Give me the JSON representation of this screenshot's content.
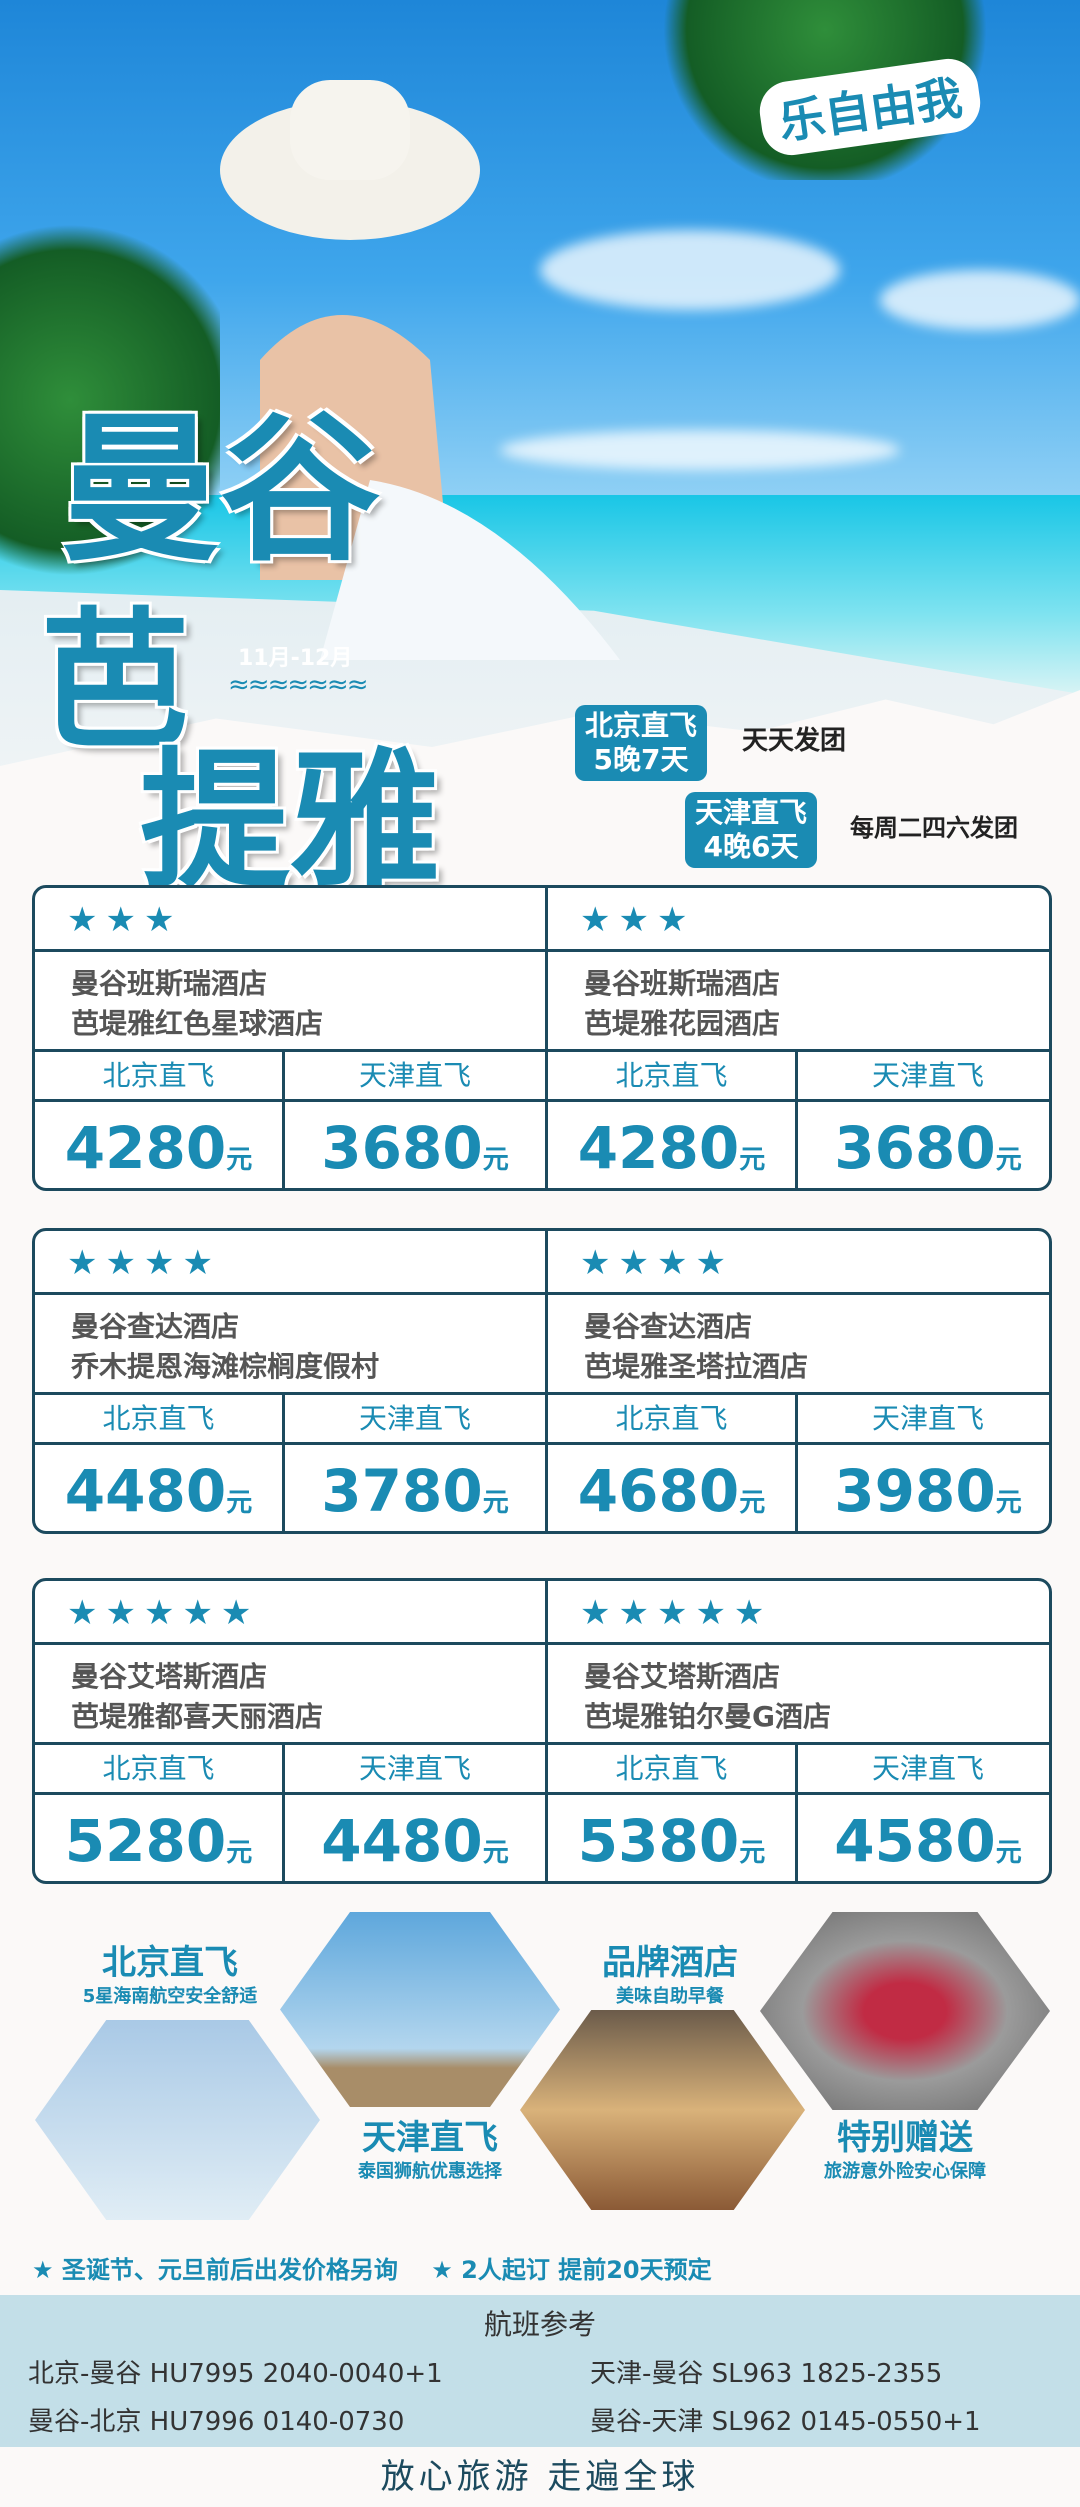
{
  "hero": {
    "slogan": "乐自由我",
    "title_line1": "曼谷",
    "title_line2": "芭",
    "title_line3": "提雅",
    "date_range": "11月-12月",
    "badges": [
      {
        "line1": "北京直飞",
        "line2": "5晚7天",
        "note": "天天发团"
      },
      {
        "line1": "天津直飞",
        "line2": "4晚6天",
        "note": "每周二四六发团"
      }
    ]
  },
  "price_tables": [
    {
      "packages": [
        {
          "stars": "★★★",
          "hotels": [
            "曼谷班斯瑞酒店",
            "芭堤雅红色星球酒店"
          ],
          "beijing_label": "北京直飞",
          "tianjin_label": "天津直飞",
          "beijing_price": "4280",
          "tianjin_price": "3680"
        },
        {
          "stars": "★★★",
          "hotels": [
            "曼谷班斯瑞酒店",
            "芭堤雅花园酒店"
          ],
          "beijing_label": "北京直飞",
          "tianjin_label": "天津直飞",
          "beijing_price": "4280",
          "tianjin_price": "3680"
        }
      ]
    },
    {
      "packages": [
        {
          "stars": "★★★★",
          "hotels": [
            "曼谷查达酒店",
            "乔木提恩海滩棕榈度假村"
          ],
          "beijing_label": "北京直飞",
          "tianjin_label": "天津直飞",
          "beijing_price": "4480",
          "tianjin_price": "3780"
        },
        {
          "stars": "★★★★",
          "hotels": [
            "曼谷查达酒店",
            "芭堤雅圣塔拉酒店"
          ],
          "beijing_label": "北京直飞",
          "tianjin_label": "天津直飞",
          "beijing_price": "4680",
          "tianjin_price": "3980"
        }
      ]
    },
    {
      "packages": [
        {
          "stars": "★★★★★",
          "hotels": [
            "曼谷艾塔斯酒店",
            "芭堤雅都喜天丽酒店"
          ],
          "beijing_label": "北京直飞",
          "tianjin_label": "天津直飞",
          "beijing_price": "5280",
          "tianjin_price": "4480"
        },
        {
          "stars": "★★★★★",
          "hotels": [
            "曼谷艾塔斯酒店",
            "芭堤雅铂尔曼G酒店"
          ],
          "beijing_label": "北京直飞",
          "tianjin_label": "天津直飞",
          "beijing_price": "5380",
          "tianjin_price": "4580"
        }
      ]
    }
  ],
  "currency": "元",
  "features": [
    {
      "title": "北京直飞",
      "sub": "5星海南航空安全舒适"
    },
    {
      "title": "天津直飞",
      "sub": "泰国狮航优惠选择"
    },
    {
      "title": "品牌酒店",
      "sub": "美味自助早餐"
    },
    {
      "title": "特别赠送",
      "sub": "旅游意外险安心保障"
    }
  ],
  "notes": [
    "★ 圣诞节、元旦前后出发价格另询",
    "★ 2人起订  提前20天预定"
  ],
  "flights": {
    "heading": "航班参考",
    "rows": [
      "北京-曼谷  HU7995  2040-0040+1",
      "天津-曼谷 SL963 1825-2355",
      "曼谷-北京  HU7996  0140-0730",
      "曼谷-天津 SL962 0145-0550+1"
    ]
  },
  "footer": "放心旅游  走遍全球",
  "colors": {
    "accent": "#1a8bb3",
    "border": "#1c4a5e",
    "band": "#c3dfe8"
  }
}
